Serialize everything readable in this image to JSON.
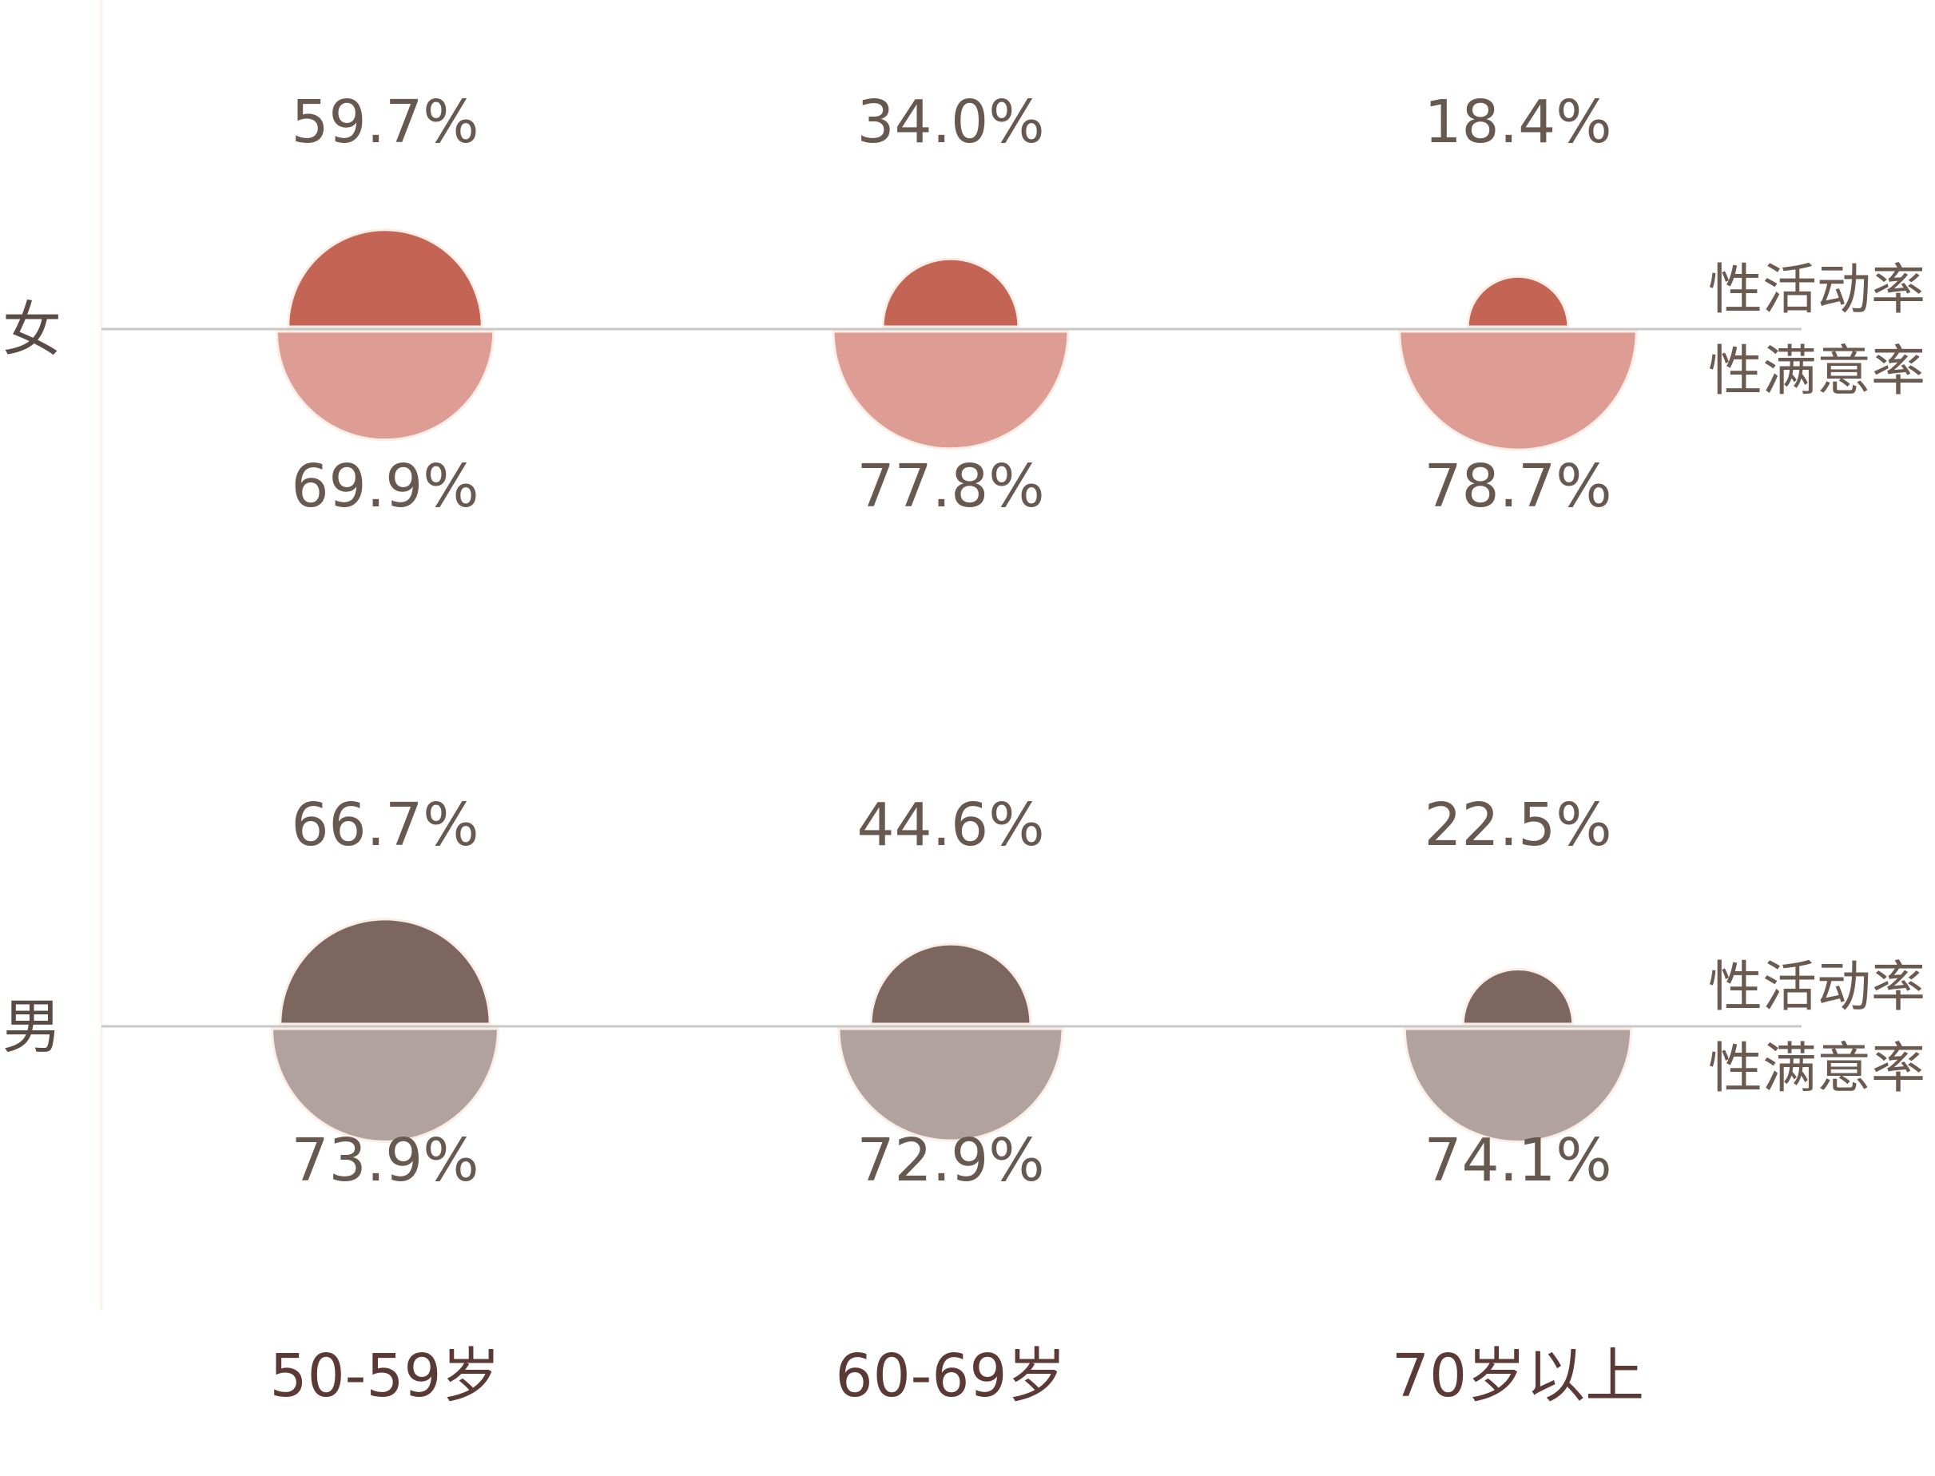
{
  "chart_data": {
    "type": "semicircle",
    "categories": [
      "50-59岁",
      "60-69岁",
      "70岁以上"
    ],
    "groups": [
      {
        "name": "女",
        "series": [
          {
            "name": "性活动率",
            "values": [
              59.7,
              34.0,
              18.4
            ],
            "labels": [
              "59.7%",
              "34.0%",
              "18.4%"
            ]
          },
          {
            "name": "性满意率",
            "values": [
              69.9,
              77.8,
              78.7
            ],
            "labels": [
              "69.9%",
              "77.8%",
              "78.7%"
            ]
          }
        ]
      },
      {
        "name": "男",
        "series": [
          {
            "name": "性活动率",
            "values": [
              66.7,
              44.6,
              22.5
            ],
            "labels": [
              "66.7%",
              "44.6%",
              "22.5%"
            ]
          },
          {
            "name": "性满意率",
            "values": [
              73.9,
              72.9,
              74.1
            ],
            "labels": [
              "73.9%",
              "72.9%",
              "74.1%"
            ]
          }
        ]
      }
    ],
    "colors": {
      "female_activity": "#c46455",
      "female_satisfaction": "#dd9d94",
      "male_activity": "#7d6660",
      "male_satisfaction": "#b2a29f",
      "axis": "#c8c8c8",
      "frame": "#fbf3ea"
    }
  }
}
